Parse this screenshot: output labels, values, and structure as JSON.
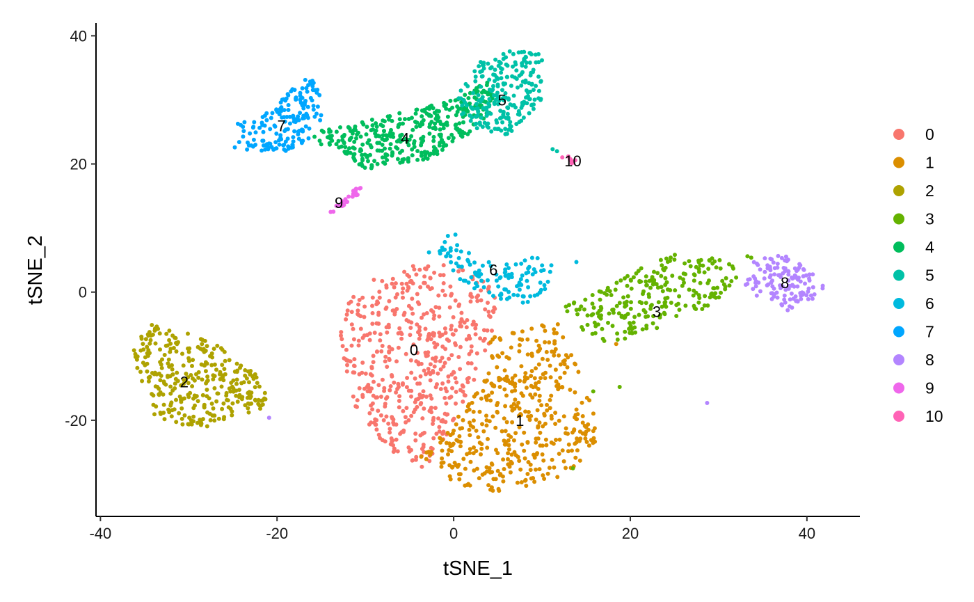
{
  "chart_data": {
    "type": "scatter",
    "xlabel": "tSNE_1",
    "ylabel": "tSNE_2",
    "xlim": [
      -40.5,
      46
    ],
    "ylim": [
      -35,
      42
    ],
    "x_ticks": [
      -40,
      -20,
      0,
      20,
      40
    ],
    "y_ticks": [
      -20,
      0,
      20,
      40
    ],
    "x_tick_labels": [
      "-40",
      "-20",
      "0",
      "20",
      "40"
    ],
    "y_tick_labels": [
      "-20",
      "0",
      "20",
      "40"
    ],
    "grid": false,
    "legend_position": "right",
    "legend": [
      {
        "label": "0",
        "color": "#F8766D"
      },
      {
        "label": "1",
        "color": "#DB8E00"
      },
      {
        "label": "2",
        "color": "#AEA200"
      },
      {
        "label": "3",
        "color": "#64B200"
      },
      {
        "label": "4",
        "color": "#00BD5C"
      },
      {
        "label": "5",
        "color": "#00C1A7"
      },
      {
        "label": "6",
        "color": "#00BADE"
      },
      {
        "label": "7",
        "color": "#00A6FF"
      },
      {
        "label": "8",
        "color": "#B385FF"
      },
      {
        "label": "9",
        "color": "#EF67EB"
      },
      {
        "label": "10",
        "color": "#FF63B6"
      }
    ],
    "clusters": [
      {
        "label": "0",
        "color": "#F8766D",
        "center": [
          -4.5,
          -9
        ],
        "n": 520,
        "polygon": [
          [
            -3.5,
            4.5
          ],
          [
            1,
            4
          ],
          [
            5,
            0
          ],
          [
            4.5,
            -6
          ],
          [
            3,
            -12
          ],
          [
            0.5,
            -19
          ],
          [
            -2,
            -26
          ],
          [
            -4,
            -28
          ],
          [
            -8,
            -24
          ],
          [
            -12,
            -16
          ],
          [
            -13,
            -6
          ],
          [
            -12,
            -1
          ],
          [
            -8,
            3
          ]
        ]
      },
      {
        "label": "1",
        "color": "#DB8E00",
        "center": [
          7.5,
          -20
        ],
        "n": 440,
        "polygon": [
          [
            4,
            -7
          ],
          [
            8,
            -5
          ],
          [
            12,
            -5
          ],
          [
            14,
            -12
          ],
          [
            16,
            -19
          ],
          [
            16,
            -24
          ],
          [
            14,
            -28
          ],
          [
            10,
            -30
          ],
          [
            6,
            -31
          ],
          [
            2,
            -31
          ],
          [
            -1,
            -29
          ],
          [
            -4,
            -26
          ],
          [
            -1,
            -22
          ],
          [
            2,
            -17
          ],
          [
            4,
            -12
          ]
        ]
      },
      {
        "label": "2",
        "color": "#AEA200",
        "center": [
          -30.5,
          -14
        ],
        "n": 330,
        "polygon": [
          [
            -35,
            -5
          ],
          [
            -33,
            -4.5
          ],
          [
            -31,
            -6
          ],
          [
            -27,
            -8
          ],
          [
            -23,
            -12
          ],
          [
            -21,
            -15
          ],
          [
            -21.5,
            -18
          ],
          [
            -25,
            -20
          ],
          [
            -28,
            -21
          ],
          [
            -31,
            -21
          ],
          [
            -34,
            -19
          ],
          [
            -35,
            -15
          ],
          [
            -36.5,
            -10
          ]
        ]
      },
      {
        "label": "3",
        "color": "#64B200",
        "center": [
          23,
          -3
        ],
        "n": 250,
        "polygon": [
          [
            15,
            -1
          ],
          [
            20,
            3
          ],
          [
            25,
            6
          ],
          [
            30,
            5.5
          ],
          [
            34,
            6
          ],
          [
            31,
            0
          ],
          [
            28,
            -3
          ],
          [
            24,
            -5
          ],
          [
            21,
            -7
          ],
          [
            17,
            -8
          ],
          [
            14,
            -6
          ],
          [
            12,
            -2
          ]
        ]
      },
      {
        "label": "4",
        "color": "#00BD5C",
        "center": [
          -5.5,
          24
        ],
        "n": 370,
        "polygon": [
          [
            -16,
            25
          ],
          [
            -12,
            26
          ],
          [
            -6,
            28
          ],
          [
            0,
            30
          ],
          [
            4,
            33
          ],
          [
            5,
            29
          ],
          [
            2,
            25
          ],
          [
            -2,
            21
          ],
          [
            -6,
            20
          ],
          [
            -10,
            19
          ],
          [
            -13,
            22
          ],
          [
            -16,
            23
          ]
        ]
      },
      {
        "label": "5",
        "color": "#00C1A7",
        "center": [
          5.5,
          30
        ],
        "n": 240,
        "polygon": [
          [
            0,
            30
          ],
          [
            3,
            36
          ],
          [
            7,
            38
          ],
          [
            10,
            37
          ],
          [
            10,
            30
          ],
          [
            8,
            27
          ],
          [
            6,
            24
          ],
          [
            3,
            25
          ],
          [
            1,
            27
          ]
        ]
      },
      {
        "label": "6",
        "color": "#00BADE",
        "center": [
          4.5,
          3.5
        ],
        "n": 120,
        "polygon": [
          [
            -1,
            9
          ],
          [
            1,
            9
          ],
          [
            2,
            6
          ],
          [
            5,
            4
          ],
          [
            9,
            5.5
          ],
          [
            12,
            4.5
          ],
          [
            11,
            1
          ],
          [
            8,
            -2
          ],
          [
            5,
            -1
          ],
          [
            2,
            0
          ],
          [
            0,
            3
          ],
          [
            -2,
            5
          ]
        ]
      },
      {
        "label": "7",
        "color": "#00A6FF",
        "center": [
          -19.5,
          26
        ],
        "n": 170,
        "polygon": [
          [
            -25,
            26
          ],
          [
            -21,
            28
          ],
          [
            -19,
            31
          ],
          [
            -16,
            34
          ],
          [
            -14.5,
            28
          ],
          [
            -15.5,
            24
          ],
          [
            -19,
            22
          ],
          [
            -22,
            22
          ],
          [
            -25,
            22.5
          ]
        ]
      },
      {
        "label": "8",
        "color": "#B385FF",
        "center": [
          37.5,
          1.5
        ],
        "n": 130,
        "polygon": [
          [
            34,
            5
          ],
          [
            37,
            6
          ],
          [
            40,
            4
          ],
          [
            42,
            1
          ],
          [
            41,
            -1
          ],
          [
            38,
            -3
          ],
          [
            35,
            -2
          ],
          [
            33,
            1
          ]
        ]
      },
      {
        "label": "9",
        "color": "#EF67EB",
        "center": [
          -13,
          14
        ],
        "n": 26,
        "polygon": [
          [
            -14,
            12.5
          ],
          [
            -13,
            14
          ],
          [
            -11,
            16.5
          ],
          [
            -10,
            16
          ],
          [
            -12,
            14
          ],
          [
            -13.5,
            12.5
          ]
        ]
      },
      {
        "label": "10",
        "color": "#FF63B6",
        "center": [
          13.5,
          20.5
        ],
        "n": 10,
        "polygon": [
          [
            12.5,
            21.5
          ],
          [
            14,
            20.5
          ],
          [
            13.5,
            20
          ],
          [
            12,
            21
          ]
        ]
      }
    ],
    "stray_points": [
      {
        "x": 28.7,
        "y": -17.3,
        "color": "#B385FF"
      },
      {
        "x": -20.9,
        "y": -19.6,
        "color": "#B385FF"
      },
      {
        "x": 11.2,
        "y": 22.3,
        "color": "#00C1A7"
      },
      {
        "x": 11.7,
        "y": 22.0,
        "color": "#00C1A7"
      },
      {
        "x": 18.8,
        "y": -14.8,
        "color": "#64B200"
      },
      {
        "x": 15.8,
        "y": -15.5,
        "color": "#64B200"
      },
      {
        "x": 13.5,
        "y": -27.5,
        "color": "#64B200"
      },
      {
        "x": 16.9,
        "y": -7.3,
        "color": "#64B200"
      },
      {
        "x": -2.8,
        "y": 6.2,
        "color": "#00BADE"
      },
      {
        "x": 13.9,
        "y": 4.7,
        "color": "#00BADE"
      },
      {
        "x": 18.4,
        "y": -8.1,
        "color": "#DB8E00"
      }
    ]
  }
}
